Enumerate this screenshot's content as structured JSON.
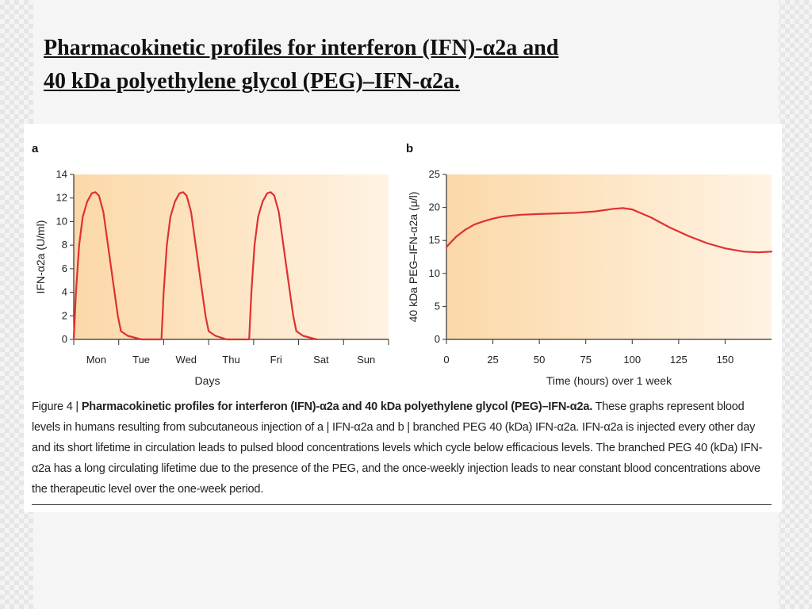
{
  "slide": {
    "title_line1": "Pharmacokinetic profiles for interferon (IFN)-α2a and",
    "title_line2": "40 kDa polyethylene glycol (PEG)–IFN-α2a."
  },
  "caption": {
    "figure_label": "Figure 4 | ",
    "bold": "Pharmacokinetic profiles for interferon (IFN)-α2a and 40 kDa polyethylene glycol (PEG)–IFN-α2a.",
    "body": " These graphs represent blood levels in humans resulting from subcutaneous injection of a | IFN-α2a and b | branched PEG 40 (kDa) IFN-α2a. IFN-α2a is injected every other day and its short lifetime in circulation leads to pulsed blood concentrations levels which cycle below efficacious levels. The branched PEG 40 (kDa) IFN-α2a has a long circulating lifetime due to the presence of the PEG, and the once-weekly injection leads to near constant blood concentrations above the therapeutic level over the one-week period."
  },
  "colors": {
    "curve": "#e03030",
    "shade_light": "#fff3e3",
    "shade_dark": "#fbd8a8",
    "axis": "#333333"
  },
  "chart_data": [
    {
      "type": "line",
      "panel_label": "a",
      "xlabel": "Days",
      "ylabel": "IFN-α2a (U/ml)",
      "ylim": [
        0,
        14
      ],
      "yticks": [
        0,
        2,
        4,
        6,
        8,
        10,
        12,
        14
      ],
      "x_categories": [
        "Mon",
        "Tue",
        "Wed",
        "Thu",
        "Fri",
        "Sat",
        "Sun"
      ],
      "xlim": [
        0,
        7
      ],
      "series": [
        {
          "points": [
            [
              0.0,
              0
            ],
            [
              0.05,
              4
            ],
            [
              0.12,
              8
            ],
            [
              0.2,
              10.4
            ],
            [
              0.3,
              11.7
            ],
            [
              0.4,
              12.4
            ],
            [
              0.48,
              12.5
            ],
            [
              0.56,
              12.2
            ],
            [
              0.66,
              10.8
            ],
            [
              0.78,
              7.5
            ],
            [
              0.9,
              4.2
            ],
            [
              0.98,
              2.0
            ],
            [
              1.05,
              0.7
            ],
            [
              1.2,
              0.3
            ],
            [
              1.5,
              0.0
            ],
            [
              1.95,
              0.0
            ],
            [
              2.0,
              4
            ],
            [
              2.07,
              8
            ],
            [
              2.15,
              10.4
            ],
            [
              2.25,
              11.7
            ],
            [
              2.35,
              12.4
            ],
            [
              2.43,
              12.5
            ],
            [
              2.51,
              12.2
            ],
            [
              2.61,
              10.8
            ],
            [
              2.73,
              7.5
            ],
            [
              2.85,
              4.2
            ],
            [
              2.93,
              2.0
            ],
            [
              3.0,
              0.7
            ],
            [
              3.15,
              0.3
            ],
            [
              3.4,
              0.0
            ],
            [
              3.9,
              0.0
            ],
            [
              3.95,
              4
            ],
            [
              4.02,
              8
            ],
            [
              4.1,
              10.4
            ],
            [
              4.2,
              11.7
            ],
            [
              4.3,
              12.4
            ],
            [
              4.38,
              12.5
            ],
            [
              4.46,
              12.2
            ],
            [
              4.56,
              10.8
            ],
            [
              4.68,
              7.5
            ],
            [
              4.8,
              4.2
            ],
            [
              4.88,
              2.0
            ],
            [
              4.95,
              0.7
            ],
            [
              5.1,
              0.3
            ],
            [
              5.4,
              0.0
            ]
          ]
        }
      ]
    },
    {
      "type": "line",
      "panel_label": "b",
      "xlabel": "Time (hours) over 1 week",
      "ylabel": "40 kDa PEG–IFN-α2a (μ/l)",
      "xlim": [
        0,
        175
      ],
      "ylim": [
        0,
        25
      ],
      "xticks": [
        0,
        25,
        50,
        75,
        100,
        125,
        150
      ],
      "yticks": [
        0,
        5,
        10,
        15,
        20,
        25
      ],
      "series": [
        {
          "points": [
            [
              0,
              14
            ],
            [
              5,
              15.5
            ],
            [
              10,
              16.6
            ],
            [
              15,
              17.4
            ],
            [
              20,
              17.9
            ],
            [
              25,
              18.3
            ],
            [
              30,
              18.6
            ],
            [
              40,
              18.9
            ],
            [
              50,
              19.0
            ],
            [
              60,
              19.1
            ],
            [
              70,
              19.2
            ],
            [
              80,
              19.4
            ],
            [
              90,
              19.8
            ],
            [
              95,
              19.9
            ],
            [
              100,
              19.7
            ],
            [
              110,
              18.5
            ],
            [
              120,
              17.0
            ],
            [
              130,
              15.7
            ],
            [
              140,
              14.6
            ],
            [
              150,
              13.8
            ],
            [
              160,
              13.3
            ],
            [
              168,
              13.2
            ],
            [
              175,
              13.3
            ]
          ]
        }
      ]
    }
  ]
}
